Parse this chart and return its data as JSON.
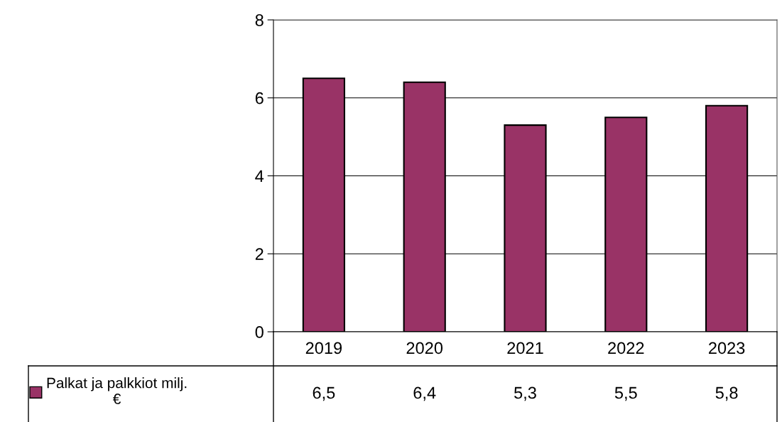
{
  "chart_data": {
    "type": "bar",
    "categories": [
      "2019",
      "2020",
      "2021",
      "2022",
      "2023"
    ],
    "series": [
      {
        "name": "Palkat ja palkkiot milj. €",
        "color": "#993366",
        "values": [
          6.5,
          6.4,
          5.3,
          5.5,
          5.8
        ],
        "value_labels": [
          "6,5",
          "6,4",
          "5,3",
          "5,5",
          "5,8"
        ]
      }
    ],
    "ylim": [
      0,
      8
    ],
    "yticks": [
      0,
      2,
      4,
      6,
      8
    ],
    "grid": "y",
    "legend": "bottom left"
  }
}
